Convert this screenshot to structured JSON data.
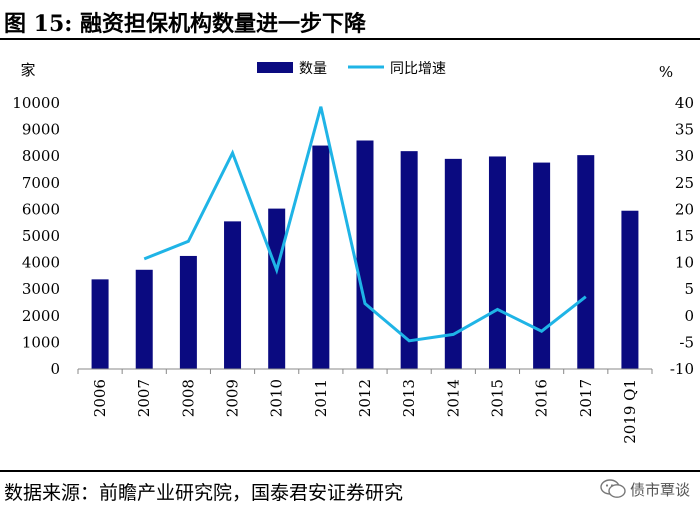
{
  "header": {
    "title": "图 15:  融资担保机构数量进一步下降"
  },
  "footer": {
    "source": "数据来源：前瞻产业研究院，国泰君安证券研究",
    "watermark": "债市覃谈"
  },
  "colors": {
    "bar": "#0a0a80",
    "line": "#1fb4e6",
    "rule": "#000000"
  },
  "chart_data": {
    "type": "bar",
    "categories": [
      "2006",
      "2007",
      "2008",
      "2009",
      "2010",
      "2011",
      "2012",
      "2013",
      "2014",
      "2015",
      "2016",
      "2017",
      "2019 Q1"
    ],
    "series": [
      {
        "name": "数量",
        "type": "bar",
        "axis": "left",
        "values": [
          3370,
          3730,
          4250,
          5550,
          6030,
          8400,
          8590,
          8190,
          7900,
          7990,
          7760,
          8040,
          5950
        ]
      },
      {
        "name": "同比增速",
        "type": "line",
        "axis": "right",
        "values": [
          null,
          10.7,
          14.0,
          30.6,
          8.6,
          39.3,
          2.3,
          -4.7,
          -3.5,
          1.2,
          -2.9,
          3.6,
          null
        ]
      }
    ],
    "left_axis": {
      "label": "家",
      "min": 0,
      "max": 10000,
      "step": 1000,
      "ticks": [
        "0",
        "1000",
        "2000",
        "3000",
        "4000",
        "5000",
        "6000",
        "7000",
        "8000",
        "9000",
        "10000"
      ]
    },
    "right_axis": {
      "label": "%",
      "min": -10,
      "max": 40,
      "step": 5,
      "ticks": [
        "-10",
        "-5",
        "0",
        "5",
        "10",
        "15",
        "20",
        "25",
        "30",
        "35",
        "40"
      ]
    },
    "legend": {
      "position": "top-center",
      "entries": [
        "数量",
        "同比增速"
      ]
    }
  }
}
